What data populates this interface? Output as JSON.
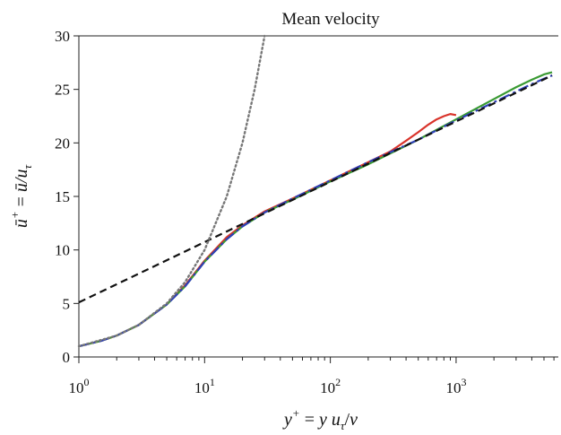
{
  "chart_data": {
    "type": "line",
    "title": "Mean velocity",
    "xlabel": "y+ = y u_τ/ν",
    "ylabel": "ū+ = ū/u_τ",
    "xscale": "log",
    "xlim": [
      1,
      6500
    ],
    "ylim": [
      0,
      30
    ],
    "grid": false,
    "x_ticks": [
      {
        "value": 1,
        "base": "10",
        "exp": "0"
      },
      {
        "value": 10,
        "base": "10",
        "exp": "1"
      },
      {
        "value": 100,
        "base": "10",
        "exp": "2"
      },
      {
        "value": 1000,
        "base": "10",
        "exp": "3"
      }
    ],
    "y_ticks": [
      {
        "value": 0,
        "label": "0"
      },
      {
        "value": 5,
        "label": "5"
      },
      {
        "value": 10,
        "label": "10"
      },
      {
        "value": 15,
        "label": "15"
      },
      {
        "value": 20,
        "label": "20"
      },
      {
        "value": 25,
        "label": "25"
      },
      {
        "value": 30,
        "label": "30"
      }
    ],
    "series": [
      {
        "color": "#d9342b",
        "style": "solid",
        "x": [
          1,
          1.5,
          2,
          3,
          5,
          7,
          10,
          15,
          20,
          30,
          50,
          100,
          200,
          300,
          400,
          500,
          600,
          700,
          800,
          900,
          1000
        ],
        "y": [
          1.0,
          1.5,
          2.0,
          3.0,
          4.9,
          6.7,
          9.0,
          11.2,
          12.3,
          13.6,
          14.8,
          16.5,
          18.2,
          19.2,
          20.2,
          21.0,
          21.7,
          22.2,
          22.5,
          22.7,
          22.6
        ]
      },
      {
        "color": "#3a9a33",
        "style": "solid",
        "x": [
          1,
          1.5,
          2,
          3,
          5,
          7,
          10,
          15,
          20,
          30,
          50,
          100,
          200,
          500,
          1000,
          2000,
          3000,
          4000,
          5000,
          5800
        ],
        "y": [
          1.0,
          1.5,
          2.0,
          3.0,
          4.9,
          6.6,
          8.9,
          11.0,
          12.2,
          13.5,
          14.7,
          16.4,
          18.0,
          20.3,
          22.2,
          24.1,
          25.2,
          25.9,
          26.4,
          26.6
        ]
      },
      {
        "color": "#2e3fb8",
        "style": "dashdot",
        "x": [
          1,
          1.5,
          2,
          3,
          5,
          7,
          10,
          15,
          20,
          30,
          50,
          100,
          200,
          500,
          1000,
          2000,
          3000,
          4000,
          5000,
          5800
        ],
        "y": [
          1.0,
          1.5,
          2.0,
          3.0,
          4.9,
          6.6,
          8.9,
          11.0,
          12.2,
          13.5,
          14.8,
          16.5,
          18.2,
          20.3,
          22.1,
          23.8,
          24.8,
          25.5,
          26.0,
          26.3
        ]
      },
      {
        "color": "#111111",
        "style": "dashed",
        "x": [
          1,
          5800
        ],
        "y": [
          5.1,
          26.3
        ]
      },
      {
        "color": "#777777",
        "style": "dotted",
        "x": [
          1,
          2,
          3,
          5,
          7,
          10,
          15,
          20,
          25,
          30
        ],
        "y": [
          1,
          2,
          3,
          5,
          7,
          10,
          15,
          20,
          25,
          30
        ]
      }
    ]
  }
}
